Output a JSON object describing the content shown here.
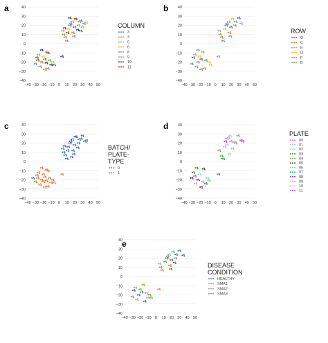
{
  "chart_data": [
    {
      "panel": "a",
      "type": "scatter",
      "xlim": [
        -40,
        50
      ],
      "ylim": [
        -40,
        40
      ],
      "xticks": [
        "−40",
        "−30",
        "−20",
        "−10",
        "0",
        "10",
        "20",
        "30",
        "40",
        "50"
      ],
      "yticks": [
        "40",
        "30",
        "20",
        "10",
        "0",
        "−10",
        "−20",
        "−30",
        "−40"
      ],
      "legend_title_lines": [
        "COLUMN"
      ],
      "legend_position": "right",
      "series": [
        {
          "name": "3",
          "color": "#4472c4",
          "points": [
            [
              -28,
              -15
            ],
            [
              -18,
              -17
            ],
            [
              14,
              20
            ],
            [
              20,
              18
            ],
            [
              28,
              25
            ],
            [
              -6,
              -23
            ]
          ]
        },
        {
          "name": "4",
          "color": "#ed7d31",
          "points": [
            [
              -22,
              -20
            ],
            [
              -14,
              -27
            ],
            [
              8,
              7
            ],
            [
              18,
              12
            ],
            [
              25,
              20
            ]
          ]
        },
        {
          "name": "5",
          "color": "#a5a5a5",
          "points": [
            [
              -26,
              -12
            ],
            [
              -16,
              -9
            ],
            [
              5,
              14
            ],
            [
              17,
              24
            ],
            [
              30,
              18
            ]
          ]
        },
        {
          "name": "6",
          "color": "#ffc000",
          "points": [
            [
              -20,
              -14
            ],
            [
              -8,
              -20
            ],
            [
              12,
              16
            ],
            [
              22,
              27
            ],
            [
              35,
              23
            ]
          ]
        },
        {
          "name": "8",
          "color": "#5b9bd5",
          "points": [
            [
              -30,
              -22
            ],
            [
              -18,
              -28
            ],
            [
              10,
              3
            ],
            [
              19,
              8
            ],
            [
              26,
              24
            ]
          ]
        },
        {
          "name": "9",
          "color": "#70ad47",
          "points": [
            [
              -24,
              -25
            ],
            [
              -12,
              -18
            ],
            [
              6,
              10
            ],
            [
              15,
              22
            ],
            [
              32,
              22
            ]
          ]
        },
        {
          "name": "10",
          "color": "#264478",
          "points": [
            [
              -22,
              -7
            ],
            [
              -10,
              -23
            ],
            [
              -16,
              -21
            ],
            [
              4,
              -14
            ],
            [
              14,
              28
            ],
            [
              24,
              15
            ]
          ]
        },
        {
          "name": "11",
          "color": "#9e480e",
          "points": [
            [
              -27,
              -18
            ],
            [
              -14,
              -10
            ],
            [
              7,
              17
            ],
            [
              11,
              12
            ],
            [
              21,
              27
            ],
            [
              28,
              14
            ]
          ]
        }
      ]
    },
    {
      "panel": "b",
      "type": "scatter",
      "xlim": [
        -40,
        50
      ],
      "ylim": [
        -40,
        40
      ],
      "xticks": [
        "−40",
        "−30",
        "−20",
        "−10",
        "0",
        "10",
        "20",
        "30",
        "40",
        "50"
      ],
      "yticks": [
        "40",
        "30",
        "20",
        "10",
        "0",
        "−10",
        "−20",
        "−30",
        "−40"
      ],
      "legend_title_lines": [
        "ROW"
      ],
      "legend_position": "right",
      "series": [
        {
          "name": "G",
          "color": "#4472c4",
          "points": [
            [
              -28,
              -15
            ],
            [
              -18,
              -17
            ],
            [
              14,
              20
            ],
            [
              20,
              18
            ],
            [
              30,
              28
            ]
          ]
        },
        {
          "name": "C",
          "color": "#ed7d31",
          "points": [
            [
              -22,
              -20
            ],
            [
              -14,
              -27
            ],
            [
              8,
              7
            ],
            [
              18,
              12
            ],
            [
              25,
              20
            ]
          ]
        },
        {
          "name": "E",
          "color": "#a5a5a5",
          "points": [
            [
              -26,
              -12
            ],
            [
              -16,
              -9
            ],
            [
              5,
              14
            ],
            [
              17,
              24
            ],
            [
              33,
              22
            ]
          ]
        },
        {
          "name": "D",
          "color": "#ffc000",
          "points": [
            [
              -20,
              -14
            ],
            [
              -8,
              -20
            ],
            [
              12,
              16
            ],
            [
              22,
              27
            ],
            [
              -6,
              -23
            ]
          ]
        },
        {
          "name": "F",
          "color": "#5b9bd5",
          "points": [
            [
              -30,
              -22
            ],
            [
              -18,
              -28
            ],
            [
              10,
              3
            ],
            [
              19,
              8
            ],
            [
              26,
              24
            ]
          ]
        },
        {
          "name": "B",
          "color": "#70ad47",
          "points": [
            [
              -24,
              -25
            ],
            [
              -12,
              -18
            ],
            [
              6,
              10
            ],
            [
              15,
              22
            ],
            [
              4,
              -14
            ],
            [
              -22,
              -7
            ]
          ]
        }
      ]
    },
    {
      "panel": "c",
      "type": "scatter",
      "xlim": [
        -40,
        50
      ],
      "ylim": [
        -40,
        40
      ],
      "xticks": [
        "−40",
        "−30",
        "−20",
        "−10",
        "0",
        "10",
        "20",
        "30",
        "40",
        "50"
      ],
      "yticks": [
        "40",
        "30",
        "20",
        "10",
        "0",
        "−10",
        "−20",
        "−30",
        "−40"
      ],
      "legend_title_lines": [
        "BATCH/",
        "PLATE-",
        "TYPE"
      ],
      "legend_position": "right",
      "series": [
        {
          "name": "0",
          "color": "#4472c4",
          "points": [
            [
              14,
              20
            ],
            [
              20,
              18
            ],
            [
              30,
              28
            ],
            [
              8,
              7
            ],
            [
              18,
              12
            ],
            [
              25,
              20
            ],
            [
              5,
              14
            ],
            [
              17,
              24
            ],
            [
              33,
              22
            ],
            [
              12,
              16
            ],
            [
              22,
              27
            ],
            [
              10,
              3
            ],
            [
              19,
              8
            ],
            [
              26,
              24
            ],
            [
              6,
              10
            ],
            [
              15,
              22
            ],
            [
              28,
              25
            ],
            [
              21,
              27
            ],
            [
              16,
              5
            ],
            [
              24,
              15
            ],
            [
              11,
              12
            ],
            [
              7,
              17
            ],
            [
              35,
              23
            ],
            [
              -33,
              -18
            ]
          ]
        },
        {
          "name": "1",
          "color": "#ed7d31",
          "points": [
            [
              -28,
              -15
            ],
            [
              -18,
              -17
            ],
            [
              -22,
              -20
            ],
            [
              -14,
              -27
            ],
            [
              -26,
              -12
            ],
            [
              -16,
              -9
            ],
            [
              -20,
              -14
            ],
            [
              -8,
              -20
            ],
            [
              -30,
              -22
            ],
            [
              -18,
              -28
            ],
            [
              -24,
              -25
            ],
            [
              -12,
              -18
            ],
            [
              -22,
              -7
            ],
            [
              -10,
              -23
            ],
            [
              -16,
              -21
            ],
            [
              4,
              -14
            ],
            [
              -27,
              -18
            ],
            [
              -14,
              -10
            ],
            [
              -6,
              -23
            ],
            [
              -20,
              -22
            ]
          ]
        }
      ]
    },
    {
      "panel": "d",
      "type": "scatter",
      "xlim": [
        -40,
        50
      ],
      "ylim": [
        -40,
        40
      ],
      "xticks": [
        "−40",
        "−30",
        "−20",
        "−10",
        "0",
        "10",
        "20",
        "30",
        "40",
        "50"
      ],
      "yticks": [
        "40",
        "30",
        "20",
        "10",
        "0",
        "−10",
        "−20",
        "−30",
        "−40"
      ],
      "legend_title_lines": [
        "PLATE"
      ],
      "legend_position": "right",
      "series": [
        {
          "name": "00",
          "color": "#cc66ff",
          "points": [
            [
              15,
              25
            ],
            [
              20,
              22
            ],
            [
              26,
              20
            ]
          ]
        },
        {
          "name": "01",
          "color": "#9dc3e6",
          "points": [
            [
              -20,
              -14
            ],
            [
              -10,
              -18
            ]
          ]
        },
        {
          "name": "02",
          "color": "#a9d18e",
          "points": [
            [
              12,
              16
            ],
            [
              18,
              8
            ]
          ]
        },
        {
          "name": "03",
          "color": "#548235",
          "points": [
            [
              -28,
              -12
            ],
            [
              -12,
              -24
            ],
            [
              4,
              -14
            ]
          ]
        },
        {
          "name": "04",
          "color": "#70ad47",
          "points": [
            [
              5,
              12
            ],
            [
              8,
              6
            ],
            [
              29,
              28
            ]
          ]
        },
        {
          "name": "05",
          "color": "#375623",
          "points": [
            [
              -22,
              -20
            ],
            [
              -15,
              -8
            ]
          ]
        },
        {
          "name": "06",
          "color": "#92d050",
          "points": [
            [
              -16,
              -22
            ],
            [
              -8,
              -21
            ],
            [
              25,
              21
            ]
          ]
        },
        {
          "name": "07",
          "color": "#00b050",
          "points": [
            [
              -24,
              -7
            ],
            [
              10,
              3
            ]
          ]
        },
        {
          "name": "08",
          "color": "#7030a0",
          "points": [
            [
              -30,
              -18
            ],
            [
              -18,
              -28
            ]
          ]
        },
        {
          "name": "09",
          "color": "#b4a7d6",
          "points": [
            [
              -25,
              -24
            ],
            [
              17,
              26
            ],
            [
              22,
              14
            ]
          ]
        },
        {
          "name": "10",
          "color": "#d9b3ff",
          "points": [
            [
              -14,
              -26
            ],
            [
              15,
              18
            ],
            [
              19,
              28
            ]
          ]
        },
        {
          "name": "11",
          "color": "#a64dff",
          "points": [
            [
              -26,
              -16
            ],
            [
              13,
              22
            ],
            [
              33,
              23
            ],
            [
              35,
              22
            ]
          ]
        }
      ]
    },
    {
      "panel": "e",
      "type": "scatter",
      "xlim": [
        -40,
        50
      ],
      "ylim": [
        -40,
        40
      ],
      "xticks": [
        "−40",
        "−30",
        "−20",
        "−10",
        "0",
        "10",
        "20",
        "30",
        "40",
        "50"
      ],
      "yticks": [
        "40",
        "30",
        "20",
        "10",
        "0",
        "−10",
        "−20",
        "−30",
        "−40"
      ],
      "legend_title_lines": [
        "DISEASE",
        "CONDITION"
      ],
      "legend_position": "right",
      "series": [
        {
          "name": "HEALTHY",
          "color": "#4472c4",
          "points": [
            [
              -28,
              -15
            ],
            [
              -18,
              -17
            ],
            [
              14,
              20
            ],
            [
              20,
              18
            ],
            [
              30,
              28
            ],
            [
              19,
              8
            ],
            [
              26,
              24
            ],
            [
              -22,
              -20
            ],
            [
              -14,
              -27
            ],
            [
              35,
              23
            ],
            [
              24,
              15
            ]
          ]
        },
        {
          "name": "SMA1",
          "color": "#ed7d31",
          "points": [
            [
              -16,
              -9
            ],
            [
              8,
              7
            ],
            [
              18,
              12
            ],
            [
              25,
              20
            ],
            [
              -12,
              -18
            ],
            [
              4,
              -14
            ],
            [
              6,
              10
            ]
          ]
        },
        {
          "name": "SMA2",
          "color": "#a5a5a5",
          "points": [
            [
              -26,
              -12
            ],
            [
              5,
              14
            ],
            [
              17,
              24
            ],
            [
              -24,
              -25
            ],
            [
              -10,
              -23
            ]
          ]
        },
        {
          "name": "SMA3",
          "color": "#70ad47",
          "points": [
            [
              -20,
              -14
            ],
            [
              -8,
              -20
            ],
            [
              12,
              16
            ],
            [
              22,
              27
            ],
            [
              15,
              22
            ],
            [
              -6,
              -23
            ],
            [
              -30,
              -22
            ]
          ]
        }
      ]
    }
  ]
}
